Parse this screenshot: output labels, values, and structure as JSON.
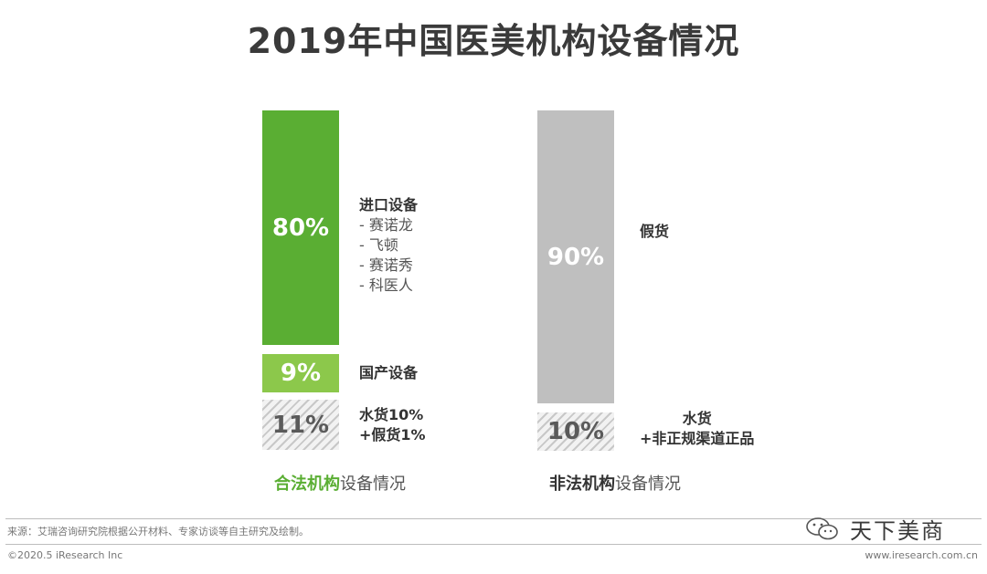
{
  "title": "2019年中国医美机构设备情况",
  "chart_data": [
    {
      "type": "bar",
      "stacked": true,
      "caption_highlight": "合法机构",
      "caption_rest": "设备情况",
      "segments": [
        {
          "value_label": "80%",
          "value": 80,
          "label": "进口设备",
          "sub_items": [
            "- 赛诺龙",
            "- 飞顿",
            "- 赛诺秀",
            "- 科医人"
          ],
          "color": "#5aae33"
        },
        {
          "value_label": "9%",
          "value": 9,
          "label": "国产设备",
          "sub_items": [],
          "color": "#8cc84b"
        },
        {
          "value_label": "11%",
          "value": 11,
          "label_lines": [
            "水货10%",
            "+假货1%"
          ],
          "color": "hatch-gray"
        }
      ]
    },
    {
      "type": "bar",
      "stacked": true,
      "caption_highlight": "非法机构",
      "caption_rest": "设备情况",
      "segments": [
        {
          "value_label": "90%",
          "value": 90,
          "label": "假货",
          "color": "#bfbfbf"
        },
        {
          "value_label": "10%",
          "value": 10,
          "label_lines": [
            "水货",
            "+非正规渠道正品"
          ],
          "color": "hatch-gray"
        }
      ]
    }
  ],
  "footer": {
    "source": "来源：艾瑞咨询研究院根据公开材料、专家访谈等自主研究及绘制。",
    "copyright": "©2020.5 iResearch Inc",
    "website": "www.iresearch.com.cn"
  },
  "brand": {
    "name": "天下美商",
    "icon": "wechat-icon"
  }
}
